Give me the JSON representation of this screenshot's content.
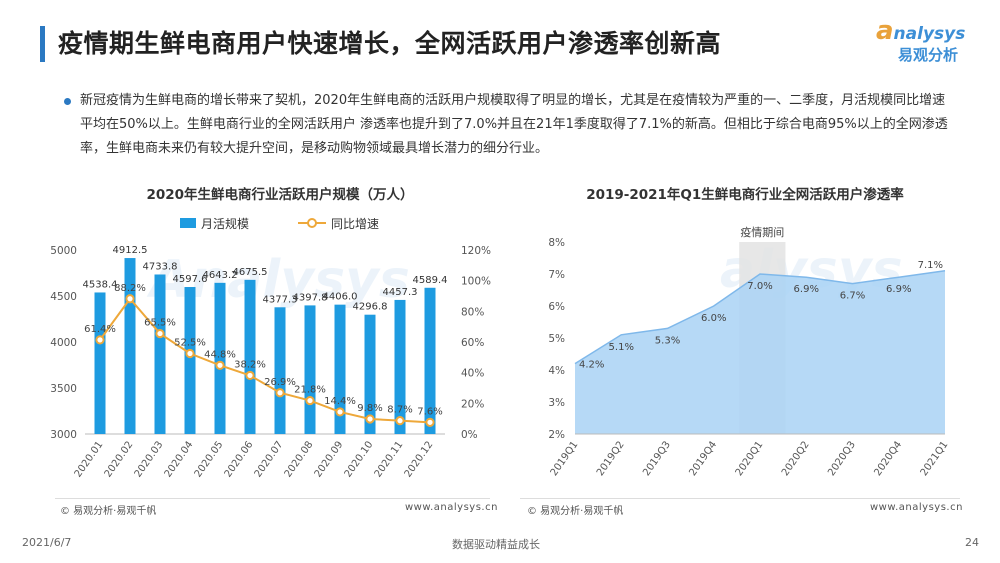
{
  "page": {
    "title": "疫情期生鲜电商用户快速增长，全网活跃用户渗透率创新高",
    "logo_en": "nalysys",
    "logo_cn": "易观分析",
    "description": "新冠疫情为生鲜电商的增长带来了契机，2020年生鲜电商的活跃用户规模取得了明显的增长，尤其是在疫情较为严重的一、二季度，月活规模同比增速平均在50%以上。生鲜电商行业的全网活跃用户 渗透率也提升到了7.0%并且在21年1季度取得了7.1%的新高。但相比于综合电商95%以上的全网渗透率，生鲜电商未来仍有较大提升空间，是移动购物领域最具增长潜力的细分行业。",
    "source_left": "© 易观分析·易观千帆",
    "url_left": "www.analysys.cn",
    "source_right": "© 易观分析·易观千帆",
    "url_right": "www.analysys.cn",
    "footer_date": "2021/6/7",
    "footer_center": "数据驱动精益成长",
    "footer_page": "24",
    "colors": {
      "accent": "#2b79c2",
      "bar": "#1e9be0",
      "line": "#eea83a",
      "area": "#a9d2f5"
    }
  },
  "chart_data": [
    {
      "type": "bar",
      "title": "2020年生鲜电商行业活跃用户规模（万人）",
      "categories": [
        "2020.01",
        "2020.02",
        "2020.03",
        "2020.04",
        "2020.05",
        "2020.06",
        "2020.07",
        "2020.08",
        "2020.09",
        "2020.10",
        "2020.11",
        "2020.12"
      ],
      "series": [
        {
          "name": "月活规模",
          "axis": "left",
          "values": [
            4538.4,
            4912.5,
            4733.8,
            4597.6,
            4643.2,
            4675.5,
            4377.3,
            4397.8,
            4406.0,
            4296.8,
            4457.3,
            4589.4
          ],
          "labels": [
            "4538.4",
            "4912.5",
            "4733.8",
            "4597.6",
            "4643.2",
            "4675.5",
            "4377.3",
            "4397.8",
            "4406.0",
            "4296.8",
            "4457.3",
            "4589.4"
          ]
        },
        {
          "name": "同比增速",
          "type": "line",
          "axis": "right",
          "values": [
            61.4,
            88.2,
            65.5,
            52.5,
            44.8,
            38.2,
            26.9,
            21.8,
            14.4,
            9.8,
            8.7,
            7.6
          ],
          "labels": [
            "61.4%",
            "88.2%",
            "65.5%",
            "52.5%",
            "44.8%",
            "38.2%",
            "26.9%",
            "21.8%",
            "14.4%",
            "9.8%",
            "8.7%",
            "7.6%"
          ]
        }
      ],
      "ylim": [
        3000,
        5000
      ],
      "yticks": [
        "3000",
        "3500",
        "4000",
        "4500",
        "5000"
      ],
      "y2lim": [
        0,
        120
      ],
      "y2ticks": [
        "0%",
        "20%",
        "40%",
        "60%",
        "80%",
        "100%",
        "120%"
      ],
      "legend": "top"
    },
    {
      "type": "area",
      "title": "2019-2021年Q1生鲜电商行业全网活跃用户渗透率",
      "categories": [
        "2019Q1",
        "2019Q2",
        "2019Q3",
        "2019Q4",
        "2020Q1",
        "2020Q2",
        "2020Q3",
        "2020Q4",
        "2021Q1"
      ],
      "values": [
        4.2,
        5.1,
        5.3,
        6.0,
        7.0,
        6.9,
        6.7,
        6.9,
        7.1
      ],
      "labels": [
        "4.2%",
        "5.1%",
        "5.3%",
        "6.0%",
        "7.0%",
        "6.9%",
        "6.7%",
        "6.9%",
        "7.1%"
      ],
      "ylim": [
        2,
        8
      ],
      "yticks": [
        "2%",
        "3%",
        "4%",
        "5%",
        "6%",
        "7%",
        "8%"
      ],
      "annotation": {
        "text": "疫情期间",
        "from": "2020Q1",
        "to": "2020Q2"
      }
    }
  ]
}
